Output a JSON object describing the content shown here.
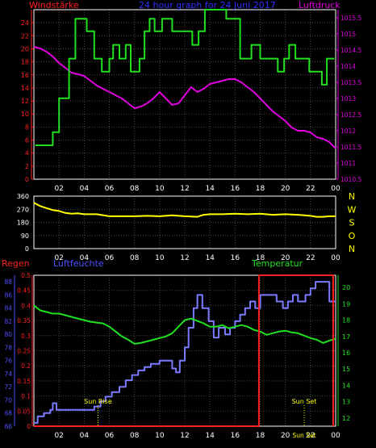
{
  "colors": {
    "background": "#000000",
    "grid": "#4a4a4a",
    "frame": "#ffffff",
    "wind": "#ff2020",
    "pressure": "#e000e0",
    "title": "#3030ff",
    "direction": "#ffff00",
    "compass": "#ffff00",
    "rain": "#ff2020",
    "humidity": "#7b7bff",
    "temperature": "#20e020",
    "event": "#ffff00",
    "rainLabel": "#ff2020",
    "humLabel": "#5050ff",
    "tempLabel": "#20e020"
  },
  "chart_data": [
    {
      "type": "line",
      "title": "24 hour graph for  24 Juni 2017",
      "x_ticks": [
        "02",
        "04",
        "06",
        "08",
        "10",
        "12",
        "14",
        "16",
        "18",
        "20",
        "22",
        "00"
      ],
      "xlim": [
        0,
        24
      ],
      "grid": true,
      "left_axis": {
        "label": "Windstärke",
        "ylim": [
          0,
          26
        ],
        "ticks": [
          0,
          2,
          4,
          6,
          8,
          10,
          12,
          14,
          16,
          18,
          20,
          22,
          24
        ]
      },
      "right_axis": {
        "label": "Luftdruck",
        "ylim": [
          1010.5,
          1015.75
        ],
        "ticks": [
          1010.5,
          1011,
          1011.5,
          1012,
          1012.5,
          1013,
          1013.5,
          1014,
          1014.5,
          1015,
          1015.5
        ]
      },
      "series": [
        {
          "name": "Windstärke",
          "axis": "left",
          "color_key": "temperature",
          "x": [
            0.1,
            1.5,
            1.5,
            2.0,
            2.0,
            2.8,
            2.8,
            3.3,
            3.3,
            4.2,
            4.2,
            4.8,
            4.8,
            5.4,
            5.4,
            6.0,
            6.0,
            6.3,
            6.3,
            6.8,
            6.8,
            7.3,
            7.3,
            7.7,
            7.7,
            8.4,
            8.4,
            8.8,
            8.8,
            9.2,
            9.2,
            9.6,
            9.6,
            10.2,
            10.2,
            11.0,
            11.0,
            12.6,
            12.6,
            13.1,
            13.1,
            13.6,
            13.6,
            14.0,
            14.0,
            15.3,
            15.3,
            16.4,
            16.4,
            17.3,
            17.3,
            18.0,
            18.0,
            19.4,
            19.4,
            19.9,
            19.9,
            20.3,
            20.3,
            20.8,
            20.8,
            21.9,
            21.9,
            22.3,
            22.3,
            22.9,
            22.9,
            23.3,
            23.3,
            23.9
          ],
          "y": [
            5.2,
            5.2,
            7.2,
            7.2,
            12.4,
            12.4,
            18.5,
            18.5,
            24.6,
            24.6,
            22.7,
            22.7,
            18.5,
            18.5,
            16.5,
            16.5,
            18.5,
            18.5,
            20.6,
            20.6,
            18.5,
            18.5,
            20.6,
            20.6,
            16.5,
            16.5,
            18.5,
            18.5,
            22.7,
            22.7,
            24.6,
            24.6,
            22.7,
            22.7,
            24.6,
            24.6,
            22.7,
            22.7,
            20.6,
            20.6,
            22.7,
            22.7,
            26.0,
            26.0,
            26.0,
            26.0,
            24.6,
            24.6,
            18.5,
            18.5,
            20.6,
            20.6,
            18.5,
            18.5,
            16.5,
            16.5,
            18.5,
            18.5,
            20.6,
            20.6,
            18.5,
            18.5,
            16.5,
            16.5,
            16.5,
            16.5,
            14.5,
            14.5,
            18.5,
            18.5
          ]
        },
        {
          "name": "Luftdruck",
          "axis": "right",
          "color_key": "pressure",
          "x": [
            0.0,
            0.5,
            1.0,
            1.5,
            2.0,
            2.5,
            3.0,
            3.5,
            4.0,
            4.5,
            5.0,
            5.5,
            6.0,
            6.5,
            7.0,
            7.5,
            8.0,
            8.5,
            9.0,
            9.5,
            10.0,
            10.5,
            11.0,
            11.5,
            12.0,
            12.5,
            13.0,
            13.5,
            14.0,
            14.5,
            15.0,
            15.5,
            16.0,
            16.5,
            17.0,
            17.5,
            18.0,
            18.5,
            19.0,
            19.5,
            20.0,
            20.5,
            21.0,
            21.5,
            22.0,
            22.5,
            23.0,
            23.5,
            24.0
          ],
          "y": [
            1014.6,
            1014.55,
            1014.45,
            1014.3,
            1014.1,
            1013.95,
            1013.8,
            1013.75,
            1013.7,
            1013.55,
            1013.4,
            1013.3,
            1013.2,
            1013.1,
            1013.0,
            1012.85,
            1012.7,
            1012.75,
            1012.85,
            1013.0,
            1013.2,
            1013.0,
            1012.8,
            1012.85,
            1013.1,
            1013.35,
            1013.2,
            1013.3,
            1013.45,
            1013.5,
            1013.55,
            1013.6,
            1013.6,
            1013.5,
            1013.35,
            1013.2,
            1013.0,
            1012.8,
            1012.6,
            1012.45,
            1012.3,
            1012.1,
            1012.0,
            1012.0,
            1011.95,
            1011.8,
            1011.75,
            1011.65,
            1011.45
          ]
        }
      ]
    },
    {
      "type": "line",
      "x_ticks": [
        "02",
        "04",
        "06",
        "08",
        "10",
        "12",
        "14",
        "16",
        "18",
        "20",
        "22",
        "00"
      ],
      "xlim": [
        0,
        24
      ],
      "grid": true,
      "left_axis": {
        "ylim": [
          0,
          360
        ],
        "ticks": [
          0,
          90,
          180,
          270,
          360
        ]
      },
      "right_axis": {
        "ticks": [
          "N",
          "W",
          "S",
          "O",
          "N"
        ]
      },
      "series": [
        {
          "name": "Windrichtung",
          "axis": "left",
          "color_key": "direction",
          "x": [
            0.0,
            0.5,
            1.0,
            1.5,
            2.0,
            2.5,
            3.0,
            3.5,
            4.0,
            5.0,
            6.0,
            7.0,
            8.0,
            9.0,
            10.0,
            11.0,
            12.0,
            13.0,
            13.5,
            14.0,
            15.0,
            16.0,
            17.0,
            18.0,
            19.0,
            20.0,
            21.0,
            22.0,
            22.5,
            23.0,
            23.5,
            24.0
          ],
          "y": [
            315,
            292,
            278,
            265,
            258,
            245,
            240,
            242,
            236,
            236,
            222,
            222,
            222,
            225,
            222,
            228,
            222,
            218,
            232,
            236,
            236,
            240,
            236,
            240,
            232,
            236,
            232,
            225,
            218,
            218,
            222,
            222
          ]
        }
      ]
    },
    {
      "type": "line",
      "x_ticks": [
        "02",
        "04",
        "06",
        "08",
        "10",
        "12",
        "14",
        "16",
        "18",
        "20",
        "22",
        "00"
      ],
      "xlim": [
        0,
        24
      ],
      "grid": true,
      "axes": [
        {
          "label": "Regen",
          "ylim": [
            0,
            0.5
          ],
          "ticks": [
            0,
            0.05,
            0.1,
            0.15,
            0.2,
            0.25,
            0.3,
            0.35,
            0.4,
            0.45,
            0.5
          ]
        },
        {
          "label": "Luftfeuchte",
          "ylim": [
            66,
            89
          ],
          "ticks": [
            66,
            68,
            70,
            72,
            74,
            76,
            78,
            80,
            82,
            84,
            86,
            88
          ]
        },
        {
          "label": "Temperatur",
          "ylim": [
            11.5,
            20.75
          ],
          "ticks": [
            12,
            13,
            14,
            15,
            16,
            17,
            18,
            19,
            20
          ]
        }
      ],
      "annotations": [
        {
          "text": "Sun Rise",
          "x": 5.1,
          "level": "bottom"
        },
        {
          "text": "Sun Set",
          "x": 21.5,
          "level": "bottom"
        },
        {
          "text": "Sun Set",
          "x": 21.5,
          "level": "axis"
        }
      ],
      "series": [
        {
          "name": "Regen",
          "axis": "Regen",
          "color_key": "rain",
          "x": [
            0.0,
            17.9,
            17.9,
            23.8,
            23.8
          ],
          "y": [
            0.0,
            0.0,
            0.5,
            0.5,
            0.0
          ]
        },
        {
          "name": "Luftfeuchte",
          "axis": "Luftfeuchte",
          "color_key": "humidity",
          "x": [
            0.0,
            0.3,
            0.3,
            0.8,
            0.8,
            1.3,
            1.3,
            1.5,
            1.5,
            1.8,
            1.8,
            4.8,
            4.8,
            5.3,
            5.3,
            5.7,
            5.7,
            6.2,
            6.2,
            6.8,
            6.8,
            7.3,
            7.3,
            7.8,
            7.8,
            8.3,
            8.3,
            8.8,
            8.8,
            9.3,
            9.3,
            10.0,
            10.0,
            11.0,
            11.0,
            11.3,
            11.3,
            11.6,
            11.6,
            12.0,
            12.0,
            12.3,
            12.3,
            12.7,
            12.7,
            13.0,
            13.0,
            13.4,
            13.4,
            13.9,
            13.9,
            14.3,
            14.3,
            14.7,
            14.7,
            15.2,
            15.2,
            15.6,
            15.6,
            16.0,
            16.0,
            16.4,
            16.4,
            16.8,
            16.8,
            17.2,
            17.2,
            17.6,
            17.6,
            18.0,
            18.0,
            19.3,
            19.3,
            19.8,
            19.8,
            20.2,
            20.2,
            20.6,
            20.6,
            21.0,
            21.0,
            21.6,
            21.6,
            22.0,
            22.0,
            22.4,
            22.4,
            23.5,
            23.5,
            24.0
          ],
          "y": [
            66.5,
            66.5,
            67.5,
            67.5,
            68.0,
            68.0,
            68.5,
            68.5,
            69.5,
            69.5,
            68.5,
            68.5,
            69.0,
            69.0,
            69.8,
            69.8,
            70.5,
            70.5,
            71.2,
            71.2,
            72.0,
            72.0,
            73.0,
            73.0,
            73.8,
            73.8,
            74.5,
            74.5,
            75.0,
            75.0,
            75.5,
            75.5,
            76.0,
            76.0,
            74.8,
            74.8,
            74.2,
            74.2,
            76.0,
            76.0,
            78.0,
            78.0,
            81.0,
            81.0,
            84.0,
            84.0,
            86.0,
            86.0,
            84.0,
            84.0,
            82.0,
            82.0,
            79.5,
            79.5,
            81.0,
            81.0,
            80.0,
            80.0,
            81.0,
            81.0,
            82.0,
            82.0,
            83.0,
            83.0,
            84.0,
            84.0,
            85.0,
            85.0,
            84.0,
            84.0,
            86.0,
            86.0,
            85.0,
            85.0,
            84.0,
            84.0,
            85.0,
            85.0,
            86.0,
            86.0,
            85.0,
            85.0,
            86.0,
            86.0,
            87.0,
            87.0,
            88.0,
            88.0,
            85.0,
            85.0
          ]
        },
        {
          "name": "Temperatur",
          "axis": "Temperatur",
          "color_key": "temperature",
          "x": [
            0.0,
            0.5,
            1.0,
            1.5,
            2.0,
            2.5,
            3.0,
            3.5,
            4.0,
            4.5,
            5.0,
            5.5,
            6.0,
            6.5,
            7.0,
            7.5,
            8.0,
            8.5,
            9.0,
            9.5,
            10.0,
            10.5,
            11.0,
            11.5,
            12.0,
            12.5,
            13.0,
            13.5,
            14.0,
            14.5,
            15.0,
            15.5,
            16.0,
            16.5,
            17.0,
            17.5,
            18.0,
            18.5,
            19.0,
            19.5,
            20.0,
            20.5,
            21.0,
            21.5,
            22.0,
            22.5,
            23.0,
            23.5,
            24.0
          ],
          "y": [
            18.9,
            18.6,
            18.5,
            18.4,
            18.4,
            18.3,
            18.2,
            18.1,
            18.0,
            17.9,
            17.85,
            17.8,
            17.6,
            17.3,
            17.0,
            16.8,
            16.55,
            16.6,
            16.7,
            16.8,
            16.9,
            17.0,
            17.2,
            17.6,
            18.0,
            18.1,
            17.95,
            17.8,
            17.6,
            17.6,
            17.7,
            17.5,
            17.6,
            17.7,
            17.6,
            17.4,
            17.3,
            17.1,
            17.2,
            17.3,
            17.35,
            17.25,
            17.2,
            17.05,
            16.9,
            16.8,
            16.6,
            16.75,
            16.85
          ]
        }
      ]
    }
  ]
}
